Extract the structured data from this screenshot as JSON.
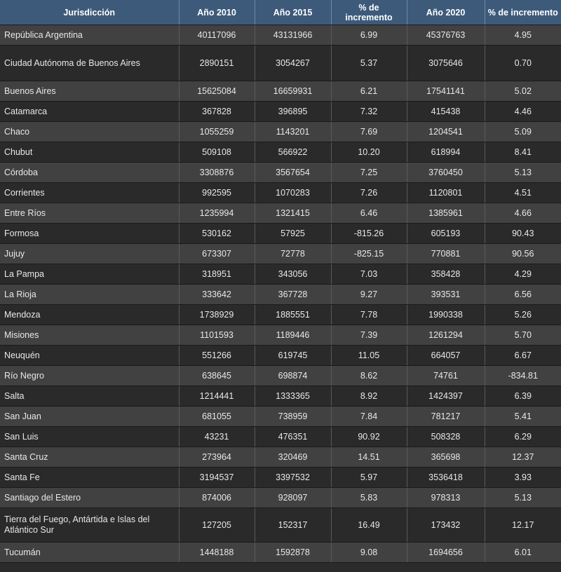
{
  "colors": {
    "header_bg": "#3d5a7a",
    "row_light": "#414141",
    "row_dark": "#2a2a2a",
    "text": "#e8e8e8"
  },
  "headers": [
    "Jurisdicción",
    "Año 2010",
    "Año 2015",
    "% de incremento",
    "Año 2020",
    "% de incremento"
  ],
  "rows": [
    [
      "República Argentina",
      "40117096",
      "43131966",
      "6.99",
      "45376763",
      "4.95"
    ],
    [
      "Ciudad Autónoma de Buenos Aires",
      "2890151",
      "3054267",
      "5.37",
      "3075646",
      "0.70"
    ],
    [
      "Buenos Aires",
      "15625084",
      "16659931",
      "6.21",
      "17541141",
      "5.02"
    ],
    [
      "Catamarca",
      "367828",
      "396895",
      "7.32",
      "415438",
      "4.46"
    ],
    [
      "Chaco",
      "1055259",
      "1143201",
      "7.69",
      "1204541",
      "5.09"
    ],
    [
      "Chubut",
      "509108",
      "566922",
      "10.20",
      "618994",
      "8.41"
    ],
    [
      "Córdoba",
      "3308876",
      "3567654",
      "7.25",
      "3760450",
      "5.13"
    ],
    [
      "Corrientes",
      "992595",
      "1070283",
      "7.26",
      "1120801",
      "4.51"
    ],
    [
      "Entre Ríos",
      "1235994",
      "1321415",
      "6.46",
      "1385961",
      "4.66"
    ],
    [
      "Formosa",
      "530162",
      "57925",
      "-815.26",
      "605193",
      "90.43"
    ],
    [
      "Jujuy",
      "673307",
      "72778",
      "-825.15",
      "770881",
      "90.56"
    ],
    [
      "La Pampa",
      "318951",
      "343056",
      "7.03",
      "358428",
      "4.29"
    ],
    [
      "La Rioja",
      "333642",
      "367728",
      "9.27",
      "393531",
      "6.56"
    ],
    [
      "Mendoza",
      "1738929",
      "1885551",
      "7.78",
      "1990338",
      "5.26"
    ],
    [
      "Misiones",
      "1101593",
      "1189446",
      "7.39",
      "1261294",
      "5.70"
    ],
    [
      "Neuquén",
      "551266",
      "619745",
      "11.05",
      "664057",
      "6.67"
    ],
    [
      "Río Negro",
      "638645",
      "698874",
      "8.62",
      "74761",
      "-834.81"
    ],
    [
      "Salta",
      "1214441",
      "1333365",
      "8.92",
      "1424397",
      "6.39"
    ],
    [
      "San Juan",
      "681055",
      "738959",
      "7.84",
      "781217",
      "5.41"
    ],
    [
      "San Luis",
      "43231",
      "476351",
      "90.92",
      "508328",
      "6.29"
    ],
    [
      "Santa Cruz",
      "273964",
      "320469",
      "14.51",
      "365698",
      "12.37"
    ],
    [
      "Santa Fe",
      "3194537",
      "3397532",
      "5.97",
      "3536418",
      "3.93"
    ],
    [
      "Santiago del Estero",
      "874006",
      "928097",
      "5.83",
      "978313",
      "5.13"
    ],
    [
      "Tierra del Fuego, Antártida e Islas del Atlántico Sur",
      "127205",
      "152317",
      "16.49",
      "173432",
      "12.17"
    ],
    [
      "Tucumán",
      "1448188",
      "1592878",
      "9.08",
      "1694656",
      "6.01"
    ]
  ]
}
